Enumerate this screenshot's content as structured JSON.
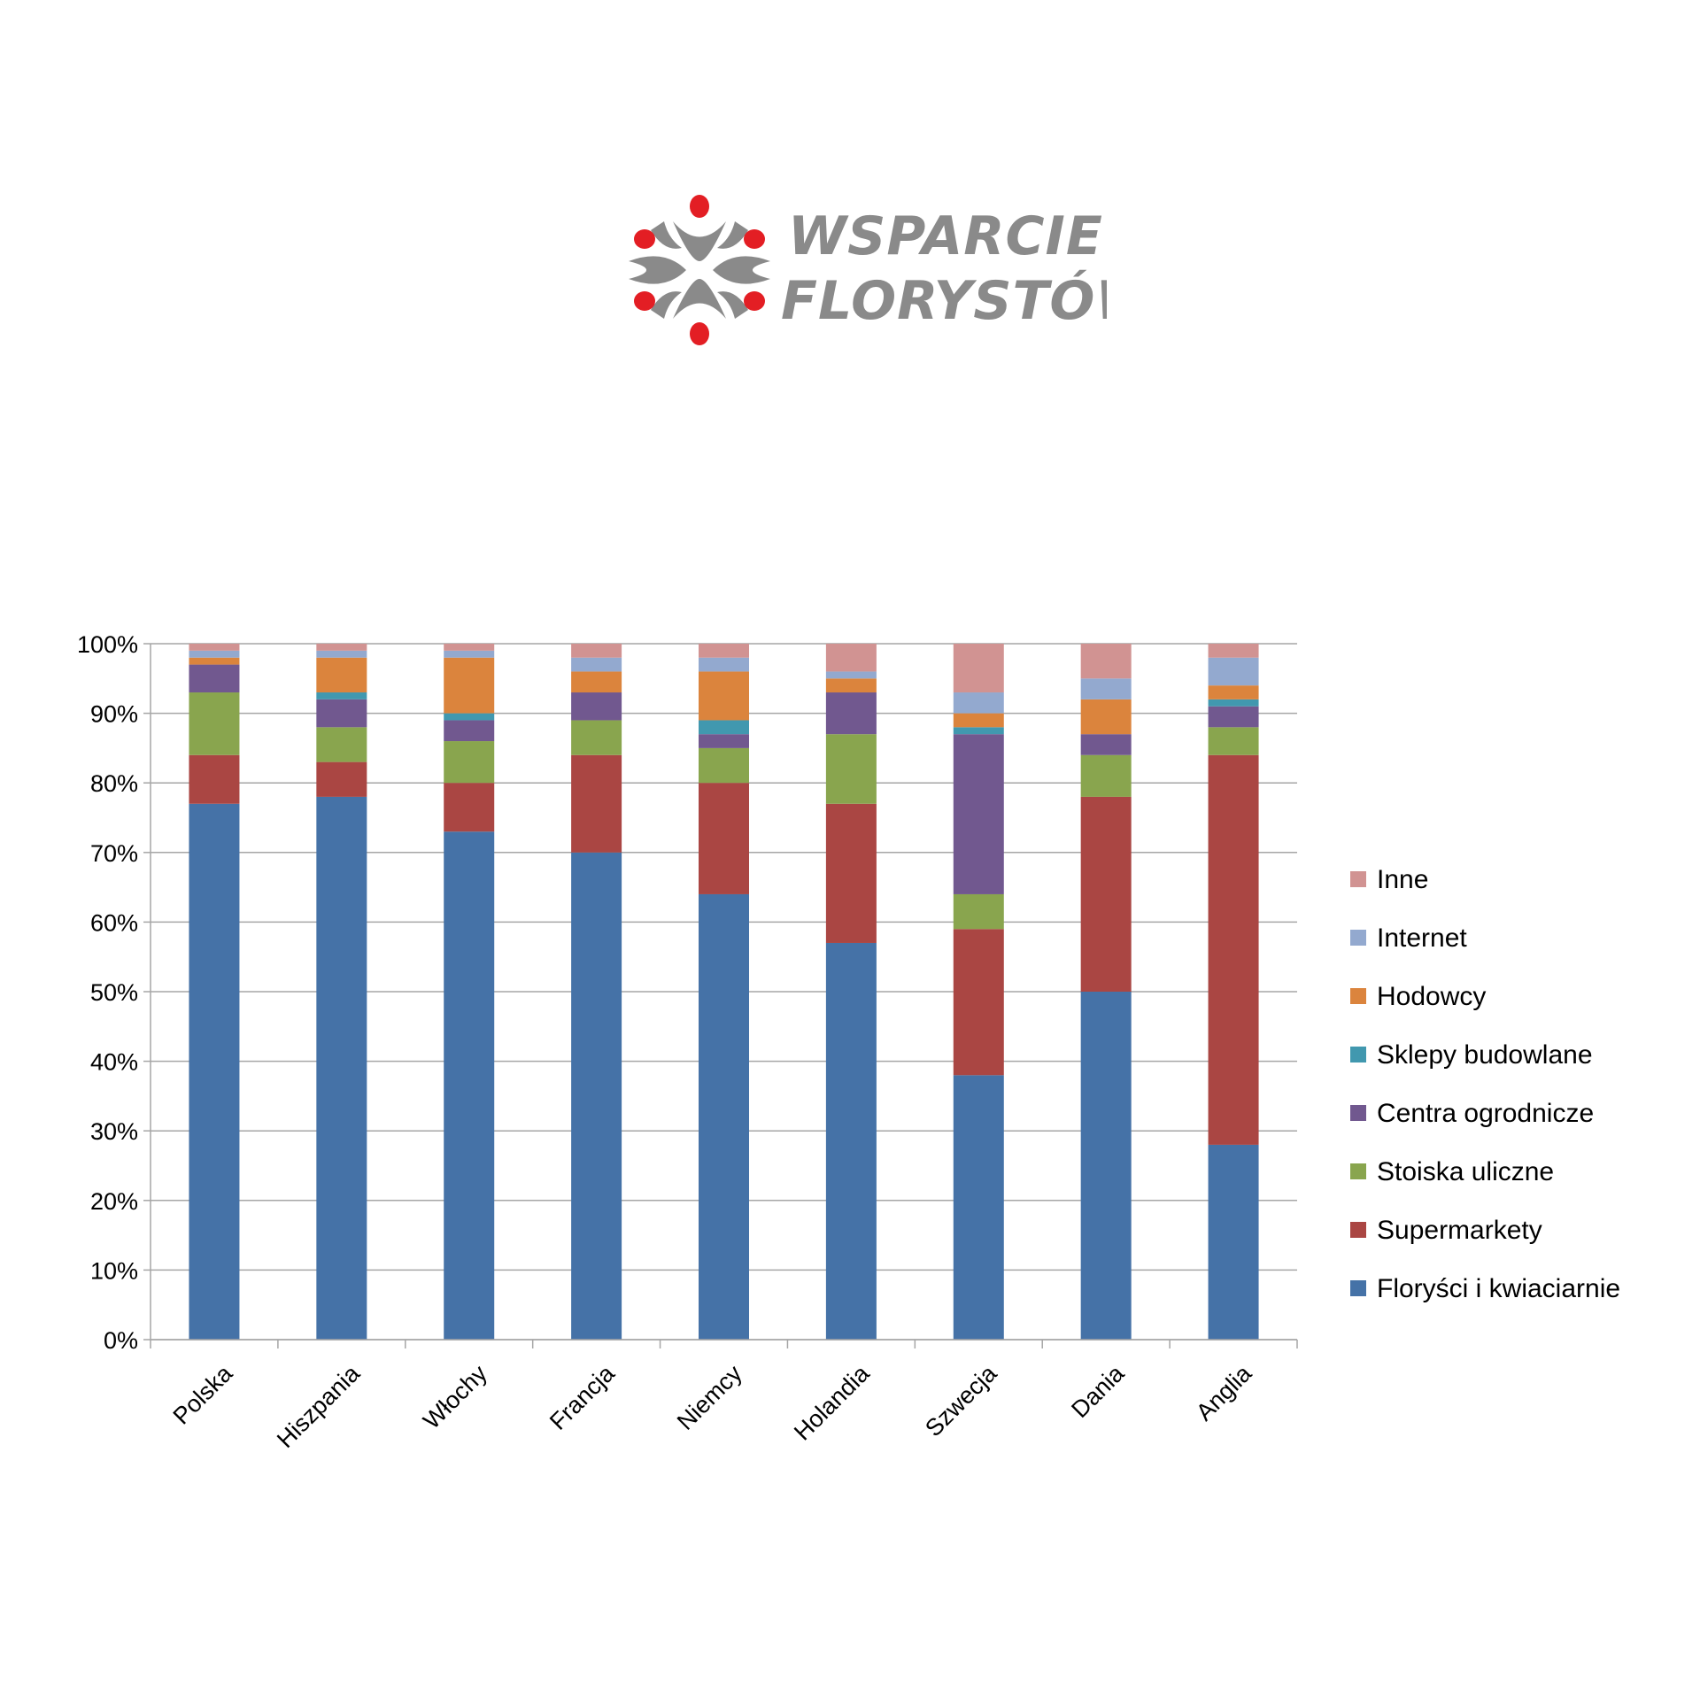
{
  "logo": {
    "line1": "WSPARCIE",
    "line2": "FLORYSTÓW",
    "text_color": "#8a8a8a",
    "accent_color": "#e31e24"
  },
  "chart_data": {
    "type": "bar",
    "stacked": true,
    "categories": [
      "Polska",
      "Hiszpania",
      "Włochy",
      "Francja",
      "Niemcy",
      "Holandia",
      "Szwecja",
      "Dania",
      "Anglia"
    ],
    "ylim": [
      0,
      100
    ],
    "yticks": [
      "0%",
      "10%",
      "20%",
      "30%",
      "40%",
      "50%",
      "60%",
      "70%",
      "80%",
      "90%",
      "100%"
    ],
    "grid": true,
    "legend_position": "right",
    "series": [
      {
        "name": "Floryści i kwiaciarnie",
        "color": "#4572a7",
        "values": [
          77,
          78,
          73,
          70,
          64,
          57,
          38,
          50,
          28
        ]
      },
      {
        "name": "Supermarkety",
        "color": "#aa4643",
        "values": [
          7,
          5,
          7,
          14,
          16,
          20,
          21,
          28,
          56
        ]
      },
      {
        "name": "Stoiska uliczne",
        "color": "#89a54e",
        "values": [
          9,
          5,
          6,
          5,
          5,
          10,
          5,
          6,
          4
        ]
      },
      {
        "name": "Centra ogrodnicze",
        "color": "#71588f",
        "values": [
          4,
          4,
          3,
          4,
          2,
          6,
          23,
          3,
          3
        ]
      },
      {
        "name": "Sklepy budowlane",
        "color": "#4198af",
        "values": [
          0,
          1,
          1,
          0,
          2,
          0,
          1,
          0,
          1
        ]
      },
      {
        "name": "Hodowcy",
        "color": "#db843d",
        "values": [
          1,
          5,
          8,
          3,
          7,
          2,
          2,
          5,
          2
        ]
      },
      {
        "name": "Internet",
        "color": "#93a9cf",
        "values": [
          1,
          1,
          1,
          2,
          2,
          1,
          3,
          3,
          4
        ]
      },
      {
        "name": "Inne",
        "color": "#d19392",
        "values": [
          1,
          1,
          1,
          2,
          2,
          4,
          7,
          5,
          2
        ]
      }
    ]
  }
}
